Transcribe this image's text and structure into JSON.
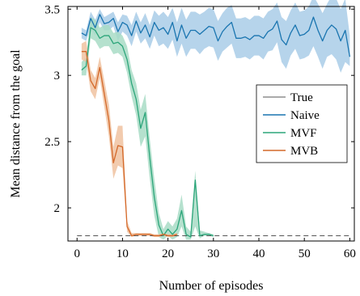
{
  "chart_data": {
    "type": "line",
    "xlabel": "Number of episodes",
    "ylabel": "Mean distance from the goal",
    "xlim": [
      -2,
      61
    ],
    "ylim": [
      1.75,
      3.52
    ],
    "xticks": [
      0,
      10,
      20,
      30,
      40,
      50,
      60
    ],
    "yticks": [
      2,
      2.5,
      3,
      3.5
    ],
    "ytick_labels": [
      "2",
      "2.5",
      "3",
      "3.5"
    ],
    "grid": false,
    "legend_position": "right-middle",
    "series": [
      {
        "name": "True",
        "color": "#555555",
        "dash": true,
        "x": [
          0,
          60
        ],
        "y": [
          1.79,
          1.79
        ]
      },
      {
        "name": "Naive",
        "color": "#1a75b0",
        "band_color": "#a9cde8",
        "x": [
          1,
          2,
          3,
          4,
          5,
          6,
          7,
          8,
          9,
          10,
          11,
          12,
          13,
          14,
          15,
          16,
          17,
          18,
          19,
          20,
          21,
          22,
          23,
          24,
          25,
          26,
          27,
          28,
          29,
          30,
          31,
          32,
          33,
          34,
          35,
          36,
          37,
          38,
          39,
          40,
          41,
          42,
          43,
          44,
          45,
          46,
          47,
          48,
          49,
          50,
          51,
          52,
          53,
          54,
          55,
          56,
          57,
          58,
          59,
          60
        ],
        "y": [
          3.32,
          3.3,
          3.43,
          3.36,
          3.46,
          3.39,
          3.4,
          3.43,
          3.33,
          3.4,
          3.38,
          3.3,
          3.41,
          3.32,
          3.38,
          3.29,
          3.4,
          3.34,
          3.36,
          3.31,
          3.4,
          3.26,
          3.38,
          3.28,
          3.34,
          3.34,
          3.31,
          3.34,
          3.37,
          3.36,
          3.26,
          3.33,
          3.37,
          3.4,
          3.28,
          3.28,
          3.29,
          3.27,
          3.3,
          3.3,
          3.28,
          3.33,
          3.35,
          3.41,
          3.27,
          3.23,
          3.32,
          3.38,
          3.3,
          3.31,
          3.34,
          3.44,
          3.34,
          3.26,
          3.34,
          3.38,
          3.35,
          3.26,
          3.34,
          3.14
        ],
        "lower": [
          3.28,
          3.26,
          3.36,
          3.3,
          3.4,
          3.34,
          3.34,
          3.37,
          3.26,
          3.33,
          3.3,
          3.22,
          3.33,
          3.24,
          3.28,
          3.2,
          3.3,
          3.22,
          3.24,
          3.2,
          3.27,
          3.14,
          3.24,
          3.14,
          3.2,
          3.2,
          3.16,
          3.2,
          3.22,
          3.21,
          3.11,
          3.18,
          3.21,
          3.24,
          3.13,
          3.13,
          3.14,
          3.12,
          3.15,
          3.15,
          3.12,
          3.18,
          3.19,
          3.25,
          3.1,
          3.05,
          3.15,
          3.2,
          3.12,
          3.13,
          3.15,
          3.22,
          3.14,
          3.05,
          3.14,
          3.16,
          3.12,
          3.02,
          3.1,
          3.07
        ],
        "upper": [
          3.36,
          3.34,
          3.48,
          3.42,
          3.5,
          3.44,
          3.46,
          3.48,
          3.4,
          3.46,
          3.45,
          3.38,
          3.48,
          3.4,
          3.47,
          3.38,
          3.49,
          3.45,
          3.48,
          3.44,
          3.51,
          3.4,
          3.51,
          3.42,
          3.48,
          3.48,
          3.46,
          3.48,
          3.51,
          3.5,
          3.41,
          3.47,
          3.51,
          3.53,
          3.43,
          3.43,
          3.44,
          3.42,
          3.45,
          3.45,
          3.43,
          3.48,
          3.5,
          3.55,
          3.44,
          3.41,
          3.49,
          3.55,
          3.48,
          3.49,
          3.52,
          3.6,
          3.54,
          3.47,
          3.54,
          3.6,
          3.58,
          3.5,
          3.58,
          3.3
        ]
      },
      {
        "name": "MVF",
        "color": "#2ca57a",
        "band_color": "#a8dcc6",
        "x": [
          1,
          2,
          3,
          4,
          5,
          6,
          7,
          8,
          9,
          10,
          11,
          12,
          13,
          14,
          15,
          16,
          17,
          18,
          19,
          20,
          21,
          22,
          23,
          24,
          25,
          26,
          27,
          28,
          29,
          30
        ],
        "y": [
          3.04,
          3.07,
          3.36,
          3.34,
          3.28,
          3.3,
          3.3,
          3.24,
          3.25,
          3.22,
          3.12,
          2.94,
          2.82,
          2.6,
          2.72,
          2.38,
          2.08,
          1.87,
          1.79,
          1.84,
          1.8,
          1.84,
          1.98,
          1.8,
          1.78,
          2.21,
          1.79,
          1.8,
          1.8,
          1.79
        ],
        "lower": [
          3.0,
          3.0,
          3.28,
          3.26,
          3.2,
          3.22,
          3.22,
          3.16,
          3.17,
          3.14,
          3.02,
          2.84,
          2.7,
          2.46,
          2.54,
          2.22,
          1.94,
          1.78,
          1.76,
          1.79,
          1.76,
          1.78,
          1.86,
          1.76,
          1.76,
          1.86,
          1.77,
          1.79,
          1.79,
          1.78
        ],
        "upper": [
          3.1,
          3.14,
          3.44,
          3.42,
          3.36,
          3.38,
          3.38,
          3.32,
          3.33,
          3.3,
          3.22,
          3.04,
          2.94,
          2.74,
          2.86,
          2.52,
          2.22,
          1.96,
          1.84,
          1.9,
          1.86,
          1.92,
          2.1,
          1.86,
          1.82,
          2.28,
          1.83,
          1.82,
          1.81,
          1.8
        ]
      },
      {
        "name": "MVB",
        "color": "#d4692a",
        "band_color": "#f0c2a0",
        "x": [
          1,
          2,
          3,
          4,
          5,
          6,
          7,
          8,
          9,
          10,
          11,
          12,
          13,
          14,
          15,
          16,
          17,
          18,
          19,
          20,
          21,
          22
        ],
        "y": [
          3.18,
          3.18,
          2.96,
          2.9,
          3.06,
          2.86,
          2.66,
          2.34,
          2.47,
          2.46,
          1.86,
          1.79,
          1.8,
          1.8,
          1.8,
          1.8,
          1.79,
          1.79,
          1.8,
          1.79,
          1.79,
          1.8
        ],
        "lower": [
          3.12,
          3.1,
          2.88,
          2.82,
          2.98,
          2.76,
          2.54,
          2.22,
          2.32,
          2.3,
          1.82,
          1.78,
          1.79,
          1.79,
          1.79,
          1.79,
          1.78,
          1.78,
          1.79,
          1.78,
          1.78,
          1.79
        ],
        "upper": [
          3.24,
          3.26,
          3.04,
          2.98,
          3.14,
          2.96,
          2.78,
          2.46,
          2.62,
          2.62,
          1.9,
          1.81,
          1.81,
          1.81,
          1.81,
          1.81,
          1.8,
          1.8,
          1.81,
          1.8,
          1.8,
          1.81
        ]
      }
    ]
  }
}
